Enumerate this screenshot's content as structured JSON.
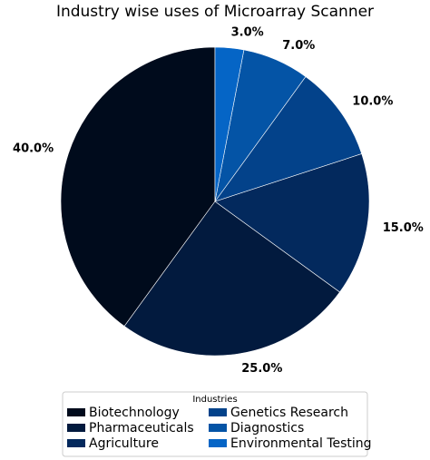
{
  "chart_data": {
    "type": "pie",
    "title": "Industry wise uses of Microarray Scanner",
    "categories": [
      "Biotechnology",
      "Pharmaceuticals",
      "Agriculture",
      "Genetics Research",
      "Diagnostics",
      "Environmental Testing"
    ],
    "values": [
      40,
      25,
      15,
      10,
      7,
      3
    ],
    "value_labels": [
      "40.0%",
      "25.0%",
      "15.0%",
      "10.0%",
      "7.0%",
      "3.0%"
    ],
    "colors": [
      "#000b1c",
      "#021a3e",
      "#03295d",
      "#03428a",
      "#0454a6",
      "#0565c6"
    ],
    "legend_title": "Industries",
    "legend": "lower center"
  }
}
